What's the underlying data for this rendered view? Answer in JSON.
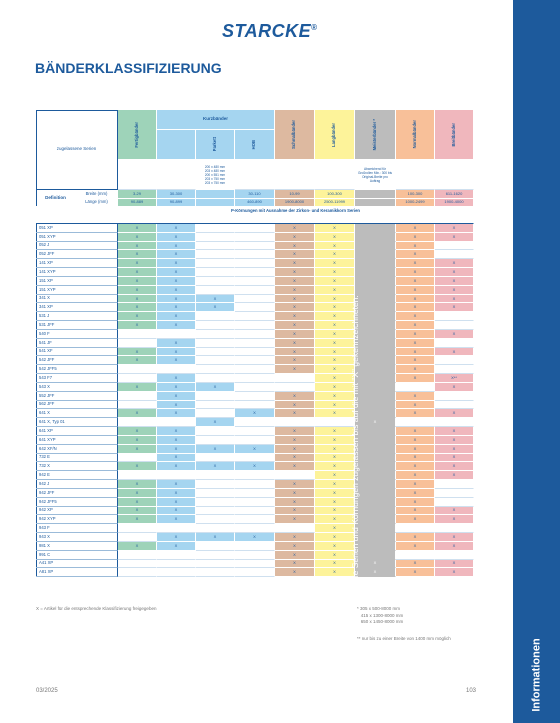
{
  "brand": {
    "name": "STARCKE",
    "mark": "®"
  },
  "page_title": "BÄNDERKLASSIFIZIERUNG",
  "sidebar_label": "Informationen",
  "colors": {
    "blue": "#1d5a9c",
    "green": "#9ed3b9",
    "lightblue": "#a5d5f0",
    "brown": "#ddb9a0",
    "yellow": "#fdf39a",
    "grey": "#bcbcbc",
    "orange": "#f8c099",
    "pink": "#f0b7bd"
  },
  "table": {
    "corner_label": "zugelassene Serien",
    "headers": {
      "fertig": "Fertigbänder",
      "kurz": "Kurzbänder",
      "parkett": "Parkett",
      "hob": "HOB",
      "schmal": "Schmalbänder",
      "lang": "Langbänder",
      "meister": "Meisterbänder *",
      "normal": "Normalbänder",
      "breit": "Breitbänder"
    },
    "parkett_sizes": "200 x 480 mm\n203 x 480 mm\n200 x 551 mm\n203 x 750 mm\n203 x 750 mm",
    "meister_note": "Abweichend für Großrollen Min.: 300 bis Original-Breite pro Auftrag",
    "def_label": "Definition",
    "breite_label": "Breite (mm)",
    "laenge_label": "Länge (mm)",
    "breite": [
      "3-29",
      "30-300",
      "",
      "30-110",
      "10-99",
      "100-300",
      "",
      "100-300",
      "611-1620"
    ],
    "laenge": [
      "90-889",
      "90-899",
      "",
      "460-890",
      "1900-8000",
      "2500-11999",
      "",
      "1000-2499",
      "1900-4000"
    ],
    "pk_note": "P-Körnungen mit Ausnahme der Zirkon- und Keramikkorn Serien",
    "rows": [
      {
        "n": "051 XP",
        "c": [
          "X",
          "X",
          "",
          "",
          "X",
          "X",
          "",
          "X",
          "X"
        ]
      },
      {
        "n": "051 XYP",
        "c": [
          "X",
          "X",
          "",
          "",
          "X",
          "X",
          "",
          "X",
          "X"
        ]
      },
      {
        "n": "052 J",
        "c": [
          "X",
          "X",
          "",
          "",
          "X",
          "X",
          "",
          "X",
          ""
        ]
      },
      {
        "n": "052 JFF",
        "c": [
          "X",
          "X",
          "",
          "",
          "X",
          "X",
          "",
          "X",
          ""
        ]
      },
      {
        "n": "141 XP",
        "c": [
          "X",
          "X",
          "",
          "",
          "X",
          "X",
          "",
          "X",
          "X"
        ]
      },
      {
        "n": "141 XYP",
        "c": [
          "X",
          "X",
          "",
          "",
          "X",
          "X",
          "",
          "X",
          "X"
        ]
      },
      {
        "n": "151 XP",
        "c": [
          "X",
          "X",
          "",
          "",
          "X",
          "X",
          "",
          "X",
          "X"
        ]
      },
      {
        "n": "151 XYP",
        "c": [
          "X",
          "X",
          "",
          "",
          "X",
          "X",
          "",
          "X",
          "X"
        ]
      },
      {
        "n": "341 X",
        "c": [
          "X",
          "X",
          "X",
          "",
          "X",
          "X",
          "",
          "X",
          "X"
        ]
      },
      {
        "n": "341 XP",
        "c": [
          "X",
          "X",
          "X",
          "",
          "X",
          "X",
          "",
          "X",
          "X"
        ]
      },
      {
        "n": "531 J",
        "c": [
          "X",
          "X",
          "",
          "",
          "X",
          "X",
          "",
          "X",
          ""
        ]
      },
      {
        "n": "531 JFF",
        "c": [
          "X",
          "X",
          "",
          "",
          "X",
          "X",
          "",
          "X",
          ""
        ]
      },
      {
        "n": "540 F",
        "c": [
          "",
          "",
          "",
          "",
          "X",
          "X",
          "",
          "X",
          "X"
        ]
      },
      {
        "n": "541 JF",
        "c": [
          "",
          "X",
          "",
          "",
          "X",
          "X",
          "",
          "X",
          ""
        ]
      },
      {
        "n": "541 XF",
        "c": [
          "X",
          "X",
          "",
          "",
          "X",
          "X",
          "",
          "X",
          "X"
        ]
      },
      {
        "n": "542 JFF",
        "c": [
          "X",
          "X",
          "",
          "",
          "X",
          "X",
          "",
          "X",
          ""
        ]
      },
      {
        "n": "542 JFF5",
        "c": [
          "",
          "",
          "",
          "",
          "X",
          "X",
          "",
          "X",
          ""
        ]
      },
      {
        "n": "543 F7",
        "c": [
          "",
          "X",
          "",
          "",
          "",
          "X",
          "",
          "X",
          "X**"
        ]
      },
      {
        "n": "543 X",
        "c": [
          "X",
          "X",
          "X",
          "",
          "",
          "X",
          "",
          "",
          "X"
        ]
      },
      {
        "n": "552 JFF",
        "c": [
          "",
          "X",
          "",
          "",
          "X",
          "X",
          "",
          "X",
          ""
        ]
      },
      {
        "n": "562 JFF",
        "c": [
          "",
          "X",
          "",
          "",
          "X",
          "X",
          "",
          "X",
          ""
        ]
      },
      {
        "n": "641 X",
        "c": [
          "X",
          "X",
          "",
          "X",
          "X",
          "X",
          "",
          "X",
          "X"
        ]
      },
      {
        "n": "641 X, Typ 01",
        "c": [
          "",
          "",
          "X",
          "",
          "",
          "",
          "X",
          "",
          ""
        ]
      },
      {
        "n": "641 XP",
        "c": [
          "X",
          "X",
          "",
          "",
          "X",
          "X",
          "",
          "X",
          "X"
        ]
      },
      {
        "n": "641 XYP",
        "c": [
          "X",
          "X",
          "",
          "",
          "X",
          "X",
          "",
          "X",
          "X"
        ]
      },
      {
        "n": "642 XF/N",
        "c": [
          "X",
          "X",
          "X",
          "X",
          "X",
          "X",
          "",
          "X",
          "X"
        ]
      },
      {
        "n": "732 E",
        "c": [
          "",
          "X",
          "",
          "",
          "X",
          "X",
          "",
          "X",
          "X"
        ]
      },
      {
        "n": "732 X",
        "c": [
          "X",
          "X",
          "X",
          "X",
          "X",
          "X",
          "",
          "X",
          "X"
        ]
      },
      {
        "n": "942 E",
        "c": [
          "",
          "",
          "",
          "",
          "",
          "X",
          "",
          "X",
          "X"
        ]
      },
      {
        "n": "942 J",
        "c": [
          "X",
          "X",
          "",
          "",
          "X",
          "X",
          "",
          "X",
          ""
        ]
      },
      {
        "n": "942 JFF",
        "c": [
          "X",
          "X",
          "",
          "",
          "X",
          "X",
          "",
          "X",
          ""
        ]
      },
      {
        "n": "942 JFF5",
        "c": [
          "X",
          "X",
          "",
          "",
          "X",
          "X",
          "",
          "X",
          ""
        ]
      },
      {
        "n": "942 XP",
        "c": [
          "X",
          "X",
          "",
          "",
          "X",
          "X",
          "",
          "X",
          "X"
        ]
      },
      {
        "n": "942 XYP",
        "c": [
          "X",
          "X",
          "",
          "",
          "X",
          "X",
          "",
          "X",
          "X"
        ]
      },
      {
        "n": "943 F",
        "c": [
          "",
          "",
          "",
          "",
          "",
          "X",
          "",
          "",
          ""
        ]
      },
      {
        "n": "943 X",
        "c": [
          "",
          "X",
          "X",
          "X",
          "X",
          "X",
          "",
          "X",
          "X"
        ]
      },
      {
        "n": "981 X",
        "c": [
          "X",
          "X",
          "",
          "",
          "X",
          "X",
          "",
          "X",
          "X"
        ]
      },
      {
        "n": "991 C",
        "c": [
          "",
          "",
          "",
          "",
          "X",
          "X",
          "",
          "",
          ""
        ]
      },
      {
        "n": "A41 XP",
        "c": [
          "",
          "",
          "",
          "",
          "X",
          "X",
          "X",
          "X",
          "X"
        ]
      },
      {
        "n": "A81 XP",
        "c": [
          "",
          "",
          "",
          "",
          "X",
          "X",
          "X",
          "X",
          "X"
        ]
      }
    ],
    "grey_note": "Alle Serien und Körnungen zugelassen bis auf die mit \"X\" gekennzeichneten."
  },
  "legend_note": "X = Artikel für die entsprechende Klassifizierung freigegeben",
  "meister_footnote": "* 305 x 500-8000 mm\n   415 x 1300-8000 mm\n   650 x 1450-8000 mm",
  "breit_footnote": "** nur bis zu einer Breite von 1400 mm möglich",
  "footer": {
    "date": "03/2025",
    "page": "103"
  }
}
